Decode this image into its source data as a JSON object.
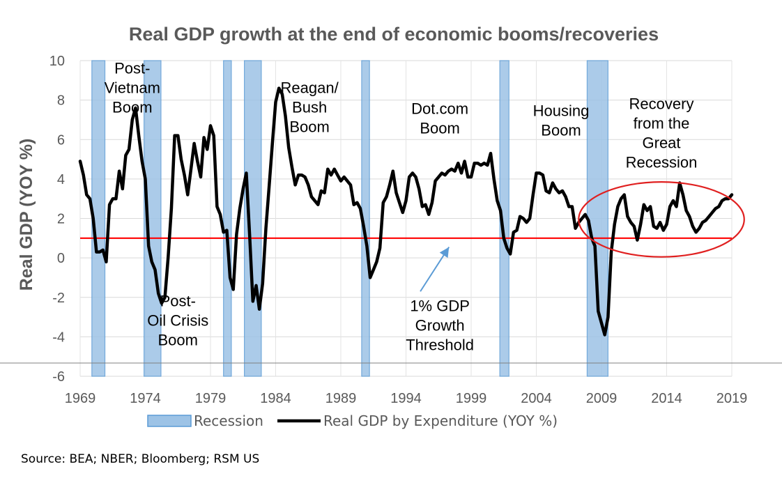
{
  "chart_data": {
    "type": "line",
    "title": "Real GDP growth at the end of economic booms/recoveries",
    "ylabel": "Real GDP (YOY %)",
    "xlabel": "",
    "xlim": [
      1969,
      2019
    ],
    "ylim": [
      -6,
      10
    ],
    "x_ticks": [
      "1969",
      "1974",
      "1979",
      "1984",
      "1989",
      "1994",
      "1999",
      "2004",
      "2009",
      "2014",
      "2019"
    ],
    "y_ticks": [
      "10",
      "8",
      "6",
      "4",
      "2",
      "0",
      "-2",
      "-4",
      "-6"
    ],
    "grid": true,
    "threshold": {
      "value": 1,
      "color": "#ff0000"
    },
    "recessions": [
      [
        1969.9,
        1970.9
      ],
      [
        1973.9,
        1975.2
      ],
      [
        1980.0,
        1980.6
      ],
      [
        1981.6,
        1982.9
      ],
      [
        1990.6,
        1991.2
      ],
      [
        2001.2,
        2001.9
      ],
      [
        2007.9,
        2009.5
      ]
    ],
    "series": [
      {
        "name": "Real GDP by Expenditure (YOY %)",
        "color": "#000000",
        "points": [
          [
            1969.0,
            4.9
          ],
          [
            1969.25,
            4.2
          ],
          [
            1969.5,
            3.2
          ],
          [
            1969.75,
            3.0
          ],
          [
            1970.0,
            2.0
          ],
          [
            1970.25,
            0.3
          ],
          [
            1970.5,
            0.3
          ],
          [
            1970.75,
            0.4
          ],
          [
            1971.0,
            -0.2
          ],
          [
            1971.25,
            2.7
          ],
          [
            1971.5,
            3.0
          ],
          [
            1971.75,
            3.0
          ],
          [
            1972.0,
            4.4
          ],
          [
            1972.25,
            3.5
          ],
          [
            1972.5,
            5.2
          ],
          [
            1972.75,
            5.5
          ],
          [
            1973.0,
            7.0
          ],
          [
            1973.25,
            7.6
          ],
          [
            1973.5,
            6.2
          ],
          [
            1973.75,
            4.9
          ],
          [
            1974.0,
            4.0
          ],
          [
            1974.25,
            0.6
          ],
          [
            1974.5,
            -0.2
          ],
          [
            1974.75,
            -0.6
          ],
          [
            1975.0,
            -1.8
          ],
          [
            1975.25,
            -2.3
          ],
          [
            1975.5,
            -2.0
          ],
          [
            1975.75,
            0.0
          ],
          [
            1976.0,
            2.5
          ],
          [
            1976.25,
            6.2
          ],
          [
            1976.5,
            6.2
          ],
          [
            1976.75,
            5.0
          ],
          [
            1977.0,
            4.2
          ],
          [
            1977.25,
            3.2
          ],
          [
            1977.5,
            4.5
          ],
          [
            1977.75,
            5.8
          ],
          [
            1978.0,
            4.9
          ],
          [
            1978.25,
            4.1
          ],
          [
            1978.5,
            6.1
          ],
          [
            1978.75,
            5.5
          ],
          [
            1979.0,
            6.7
          ],
          [
            1979.25,
            6.2
          ],
          [
            1979.5,
            2.6
          ],
          [
            1979.75,
            2.2
          ],
          [
            1980.0,
            1.3
          ],
          [
            1980.25,
            1.4
          ],
          [
            1980.5,
            -1.0
          ],
          [
            1980.75,
            -1.6
          ],
          [
            1981.0,
            1.2
          ],
          [
            1981.25,
            2.5
          ],
          [
            1981.5,
            3.5
          ],
          [
            1981.75,
            4.3
          ],
          [
            1982.0,
            1.2
          ],
          [
            1982.25,
            -2.2
          ],
          [
            1982.5,
            -1.4
          ],
          [
            1982.75,
            -2.6
          ],
          [
            1983.0,
            -1.3
          ],
          [
            1983.25,
            1.5
          ],
          [
            1983.5,
            3.6
          ],
          [
            1983.75,
            5.8
          ],
          [
            1984.0,
            7.9
          ],
          [
            1984.25,
            8.6
          ],
          [
            1984.5,
            8.3
          ],
          [
            1984.75,
            7.2
          ],
          [
            1985.0,
            5.6
          ],
          [
            1985.25,
            4.6
          ],
          [
            1985.5,
            3.7
          ],
          [
            1985.75,
            4.2
          ],
          [
            1986.0,
            4.2
          ],
          [
            1986.25,
            4.1
          ],
          [
            1986.5,
            3.7
          ],
          [
            1986.75,
            3.1
          ],
          [
            1987.0,
            2.9
          ],
          [
            1987.25,
            2.7
          ],
          [
            1987.5,
            3.4
          ],
          [
            1987.75,
            3.3
          ],
          [
            1988.0,
            4.5
          ],
          [
            1988.25,
            4.2
          ],
          [
            1988.5,
            4.5
          ],
          [
            1988.75,
            4.2
          ],
          [
            1989.0,
            3.9
          ],
          [
            1989.25,
            4.1
          ],
          [
            1989.5,
            3.9
          ],
          [
            1989.75,
            3.7
          ],
          [
            1990.0,
            2.7
          ],
          [
            1990.25,
            2.8
          ],
          [
            1990.5,
            2.5
          ],
          [
            1990.75,
            1.6
          ],
          [
            1991.0,
            0.6
          ],
          [
            1991.25,
            -1.0
          ],
          [
            1991.5,
            -0.6
          ],
          [
            1991.75,
            -0.2
          ],
          [
            1992.0,
            0.5
          ],
          [
            1992.25,
            2.8
          ],
          [
            1992.5,
            3.1
          ],
          [
            1992.75,
            3.7
          ],
          [
            1993.0,
            4.4
          ],
          [
            1993.25,
            3.3
          ],
          [
            1993.5,
            2.8
          ],
          [
            1993.75,
            2.3
          ],
          [
            1994.0,
            2.9
          ],
          [
            1994.25,
            4.1
          ],
          [
            1994.5,
            4.3
          ],
          [
            1994.75,
            4.1
          ],
          [
            1995.0,
            3.5
          ],
          [
            1995.25,
            2.6
          ],
          [
            1995.5,
            2.7
          ],
          [
            1995.75,
            2.2
          ],
          [
            1996.0,
            2.8
          ],
          [
            1996.25,
            3.9
          ],
          [
            1996.5,
            4.1
          ],
          [
            1996.75,
            4.3
          ],
          [
            1997.0,
            4.2
          ],
          [
            1997.25,
            4.4
          ],
          [
            1997.5,
            4.5
          ],
          [
            1997.75,
            4.4
          ],
          [
            1998.0,
            4.8
          ],
          [
            1998.25,
            4.3
          ],
          [
            1998.5,
            4.9
          ],
          [
            1998.75,
            4.1
          ],
          [
            1999.0,
            4.1
          ],
          [
            1999.25,
            4.8
          ],
          [
            1999.5,
            4.8
          ],
          [
            1999.75,
            4.7
          ],
          [
            2000.0,
            4.8
          ],
          [
            2000.25,
            4.7
          ],
          [
            2000.5,
            5.3
          ],
          [
            2000.75,
            4.0
          ],
          [
            2001.0,
            2.9
          ],
          [
            2001.25,
            2.4
          ],
          [
            2001.5,
            1.0
          ],
          [
            2001.75,
            0.5
          ],
          [
            2002.0,
            0.2
          ],
          [
            2002.25,
            1.3
          ],
          [
            2002.5,
            1.4
          ],
          [
            2002.75,
            2.1
          ],
          [
            2003.0,
            2.0
          ],
          [
            2003.25,
            1.8
          ],
          [
            2003.5,
            2.0
          ],
          [
            2003.75,
            3.2
          ],
          [
            2004.0,
            4.3
          ],
          [
            2004.25,
            4.3
          ],
          [
            2004.5,
            4.2
          ],
          [
            2004.75,
            3.4
          ],
          [
            2005.0,
            3.3
          ],
          [
            2005.25,
            3.8
          ],
          [
            2005.5,
            3.5
          ],
          [
            2005.75,
            3.3
          ],
          [
            2006.0,
            3.4
          ],
          [
            2006.25,
            3.1
          ],
          [
            2006.5,
            2.6
          ],
          [
            2006.75,
            2.6
          ],
          [
            2007.0,
            1.5
          ],
          [
            2007.25,
            1.8
          ],
          [
            2007.5,
            2.0
          ],
          [
            2007.75,
            2.2
          ],
          [
            2008.0,
            1.9
          ],
          [
            2008.25,
            1.0
          ],
          [
            2008.5,
            0.6
          ],
          [
            2008.75,
            -2.7
          ],
          [
            2009.0,
            -3.3
          ],
          [
            2009.25,
            -3.9
          ],
          [
            2009.5,
            -3.0
          ],
          [
            2009.75,
            0.3
          ],
          [
            2010.0,
            1.7
          ],
          [
            2010.25,
            2.6
          ],
          [
            2010.5,
            3.0
          ],
          [
            2010.75,
            3.2
          ],
          [
            2011.0,
            2.1
          ],
          [
            2011.25,
            1.8
          ],
          [
            2011.5,
            1.6
          ],
          [
            2011.75,
            0.9
          ],
          [
            2012.0,
            1.7
          ],
          [
            2012.25,
            2.7
          ],
          [
            2012.5,
            2.4
          ],
          [
            2012.75,
            2.6
          ],
          [
            2013.0,
            1.6
          ],
          [
            2013.25,
            1.5
          ],
          [
            2013.5,
            1.8
          ],
          [
            2013.75,
            1.4
          ],
          [
            2014.0,
            1.7
          ],
          [
            2014.25,
            2.6
          ],
          [
            2014.5,
            2.9
          ],
          [
            2014.75,
            2.6
          ],
          [
            2015.0,
            3.8
          ],
          [
            2015.25,
            3.2
          ],
          [
            2015.5,
            2.4
          ],
          [
            2015.75,
            2.1
          ],
          [
            2016.0,
            1.6
          ],
          [
            2016.25,
            1.3
          ],
          [
            2016.5,
            1.5
          ],
          [
            2016.75,
            1.8
          ],
          [
            2017.0,
            1.9
          ],
          [
            2017.25,
            2.1
          ],
          [
            2017.5,
            2.3
          ],
          [
            2017.75,
            2.5
          ],
          [
            2018.0,
            2.6
          ],
          [
            2018.25,
            2.9
          ],
          [
            2018.5,
            3.0
          ],
          [
            2018.75,
            3.0
          ],
          [
            2019.0,
            3.2
          ]
        ]
      }
    ],
    "legend": {
      "position": "bottom",
      "items": [
        {
          "label": "Recession",
          "color": "#9dc3e6"
        },
        {
          "label": "Real GDP by Expenditure (YOY %)",
          "color": "#000000"
        }
      ]
    },
    "annotations": [
      {
        "lines": [
          "Post-",
          "Vietnam",
          "Boom"
        ],
        "x": 1973.0,
        "y": 9.35
      },
      {
        "lines": [
          "Post-",
          "Oil Crisis",
          "Boom"
        ],
        "x": 1976.5,
        "y": -2.45
      },
      {
        "lines": [
          "Reagan/",
          "Bush",
          "Boom"
        ],
        "x": 1986.6,
        "y": 8.35
      },
      {
        "lines": [
          "Dot.com",
          "Boom"
        ],
        "x": 1996.6,
        "y": 7.3
      },
      {
        "lines": [
          "Housing",
          "Boom"
        ],
        "x": 2005.9,
        "y": 7.2
      },
      {
        "lines": [
          "1% GDP",
          "Growth",
          "Threshold"
        ],
        "x": 1996.6,
        "y": -2.7
      },
      {
        "lines": [
          "Recovery",
          "from the",
          "Great",
          "Recession"
        ],
        "x": 2013.6,
        "y": 7.55
      }
    ]
  },
  "source": "Source: BEA; NBER; Bloomberg; RSM US"
}
